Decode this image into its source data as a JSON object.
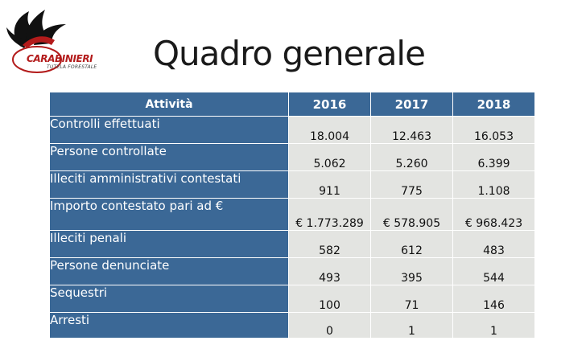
{
  "logo": {
    "name": "CARABINIERI",
    "subtitle": "TUTELA FORESTALE"
  },
  "title": "Quadro generale",
  "table": {
    "header": {
      "activity_label": "Attività",
      "years": [
        "2016",
        "2017",
        "2018"
      ]
    },
    "rows": [
      {
        "label": "Controlli effettuati",
        "values": [
          "18.004",
          "12.463",
          "16.053"
        ]
      },
      {
        "label": "Persone controllate",
        "values": [
          "5.062",
          "5.260",
          "6.399"
        ]
      },
      {
        "label": "Illeciti amministrativi contestati",
        "values": [
          "911",
          "775",
          "1.108"
        ]
      },
      {
        "label": "Importo contestato pari ad €",
        "values": [
          "€ 1.773.289",
          "€ 578.905",
          "€ 968.423"
        ]
      },
      {
        "label": "Illeciti penali",
        "values": [
          "582",
          "612",
          "483"
        ]
      },
      {
        "label": "Persone denunciate",
        "values": [
          "493",
          "395",
          "544"
        ]
      },
      {
        "label": "Sequestri",
        "values": [
          "100",
          "71",
          "146"
        ]
      },
      {
        "label": "Arresti",
        "values": [
          "0",
          "1",
          "1"
        ]
      }
    ]
  },
  "colors": {
    "header_bg": "#3b6896",
    "cell_bg": "#e3e4e1",
    "logo_red": "#b31b1b"
  }
}
